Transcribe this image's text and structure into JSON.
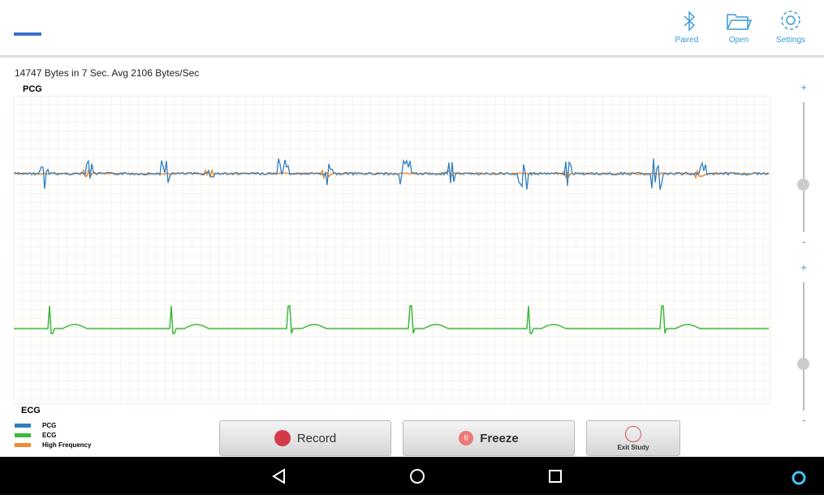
{
  "header": {
    "actions": [
      {
        "label": "Paired"
      },
      {
        "label": "Open"
      },
      {
        "label": "Settings"
      }
    ]
  },
  "status": "14747 Bytes in 7 Sec. Avg 2106 Bytes/Sec",
  "plot": {
    "top_label": "PCG",
    "bottom_label": "ECG"
  },
  "legend": [
    {
      "label": "PCG",
      "color": "#2f7fc1"
    },
    {
      "label": "ECG",
      "color": "#3cb83c"
    },
    {
      "label": "High Frequency",
      "color": "#f08a30"
    }
  ],
  "buttons": {
    "record": "Record",
    "freeze": "Freeze",
    "exit": "Exit Study"
  },
  "sliders": [
    {
      "plus": "+",
      "minus": "-"
    },
    {
      "plus": "+",
      "minus": "-"
    }
  ]
}
